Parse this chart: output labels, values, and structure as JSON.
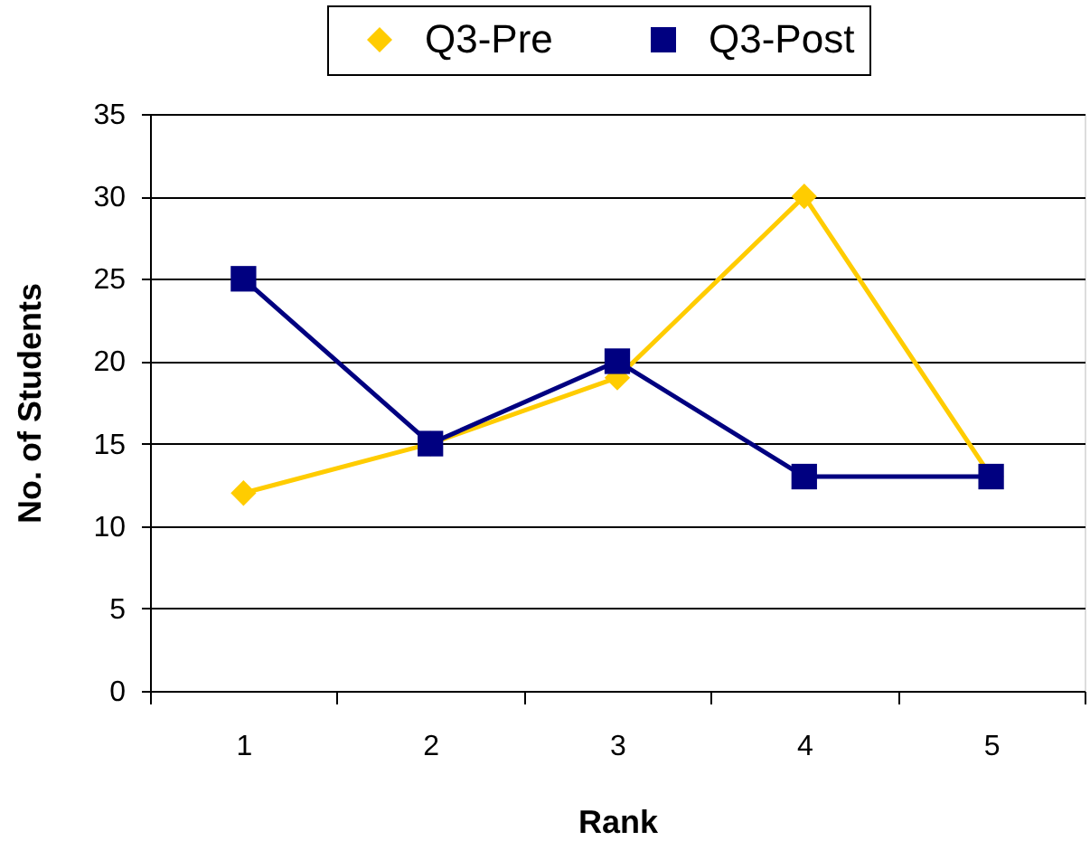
{
  "chart_data": {
    "type": "line",
    "categories": [
      "1",
      "2",
      "3",
      "4",
      "5"
    ],
    "series": [
      {
        "name": "Q3-Pre",
        "color": "#ffcc00",
        "marker": "diamond",
        "values": [
          12,
          15,
          19,
          30,
          13
        ]
      },
      {
        "name": "Q3-Post",
        "color": "#000080",
        "marker": "square",
        "values": [
          25,
          15,
          20,
          13,
          13
        ]
      }
    ],
    "xlabel": "Rank",
    "ylabel": "No. of Students",
    "ylim": [
      0,
      35
    ],
    "yticks": [
      0,
      5,
      10,
      15,
      20,
      25,
      30,
      35
    ],
    "grid": "y",
    "legend": "top",
    "line_style": "solid"
  }
}
